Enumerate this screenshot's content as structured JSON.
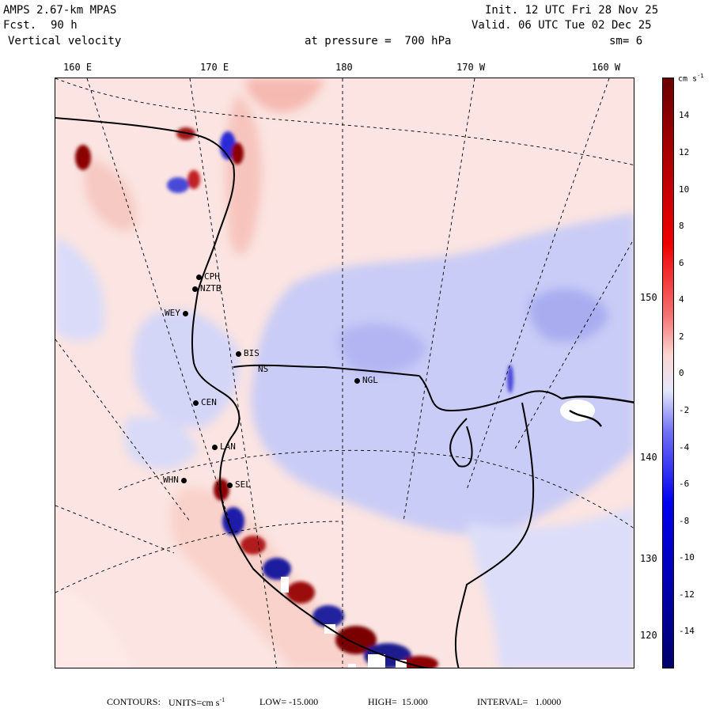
{
  "header": {
    "model": "AMPS 2.67-km MPAS",
    "fcst_label": "Fcst.",
    "fcst_value": "90 h",
    "field": "Vertical velocity",
    "init": "Init. 12 UTC Fri 28 Nov 25",
    "valid": "Valid. 06 UTC Tue 02 Dec 25",
    "pressure": "at pressure =  700 hPa",
    "smoothing": "sm= 6"
  },
  "longitude_labels": [
    "160 E",
    "170 E",
    "180",
    "170 W",
    "160 W"
  ],
  "latitude_labels": [
    "150 W",
    "140 W",
    "130 W",
    "120 W"
  ],
  "stations": [
    "CPH",
    "NZTB",
    "WEY",
    "BIS",
    "NS",
    "NGL",
    "CEN",
    "LAN",
    "WHN",
    "SEL"
  ],
  "colorbar": {
    "unit": "cm s",
    "unit_exp": "-1",
    "ticks": [
      "14",
      "12",
      "10",
      "8",
      "6",
      "4",
      "2",
      "0",
      "-2",
      "-4",
      "-6",
      "-8",
      "-10",
      "-12",
      "-14"
    ],
    "colors": {
      "dark_red": "#8b0000",
      "red": "#e02020",
      "light_red": "#f4a8a8",
      "pale_red": "#fbe3e0",
      "pale_blue": "#e4e6fb",
      "light_blue": "#a8acf0",
      "blue": "#2020e0",
      "dark_blue": "#00008b"
    }
  },
  "footer": {
    "contours_label": "CONTOURS:",
    "units_label": "UNITS=cm s",
    "units_exp": "-1",
    "low": "LOW= -15.000",
    "high": "HIGH=  15.000",
    "interval": "INTERVAL=   1.0000"
  }
}
